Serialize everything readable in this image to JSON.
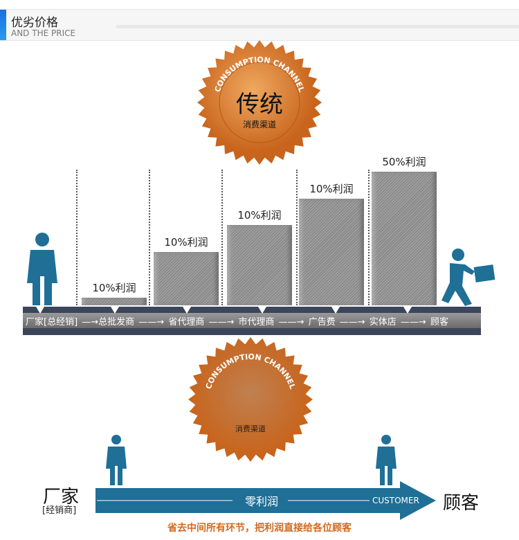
{
  "header": {
    "title": "优劣价格",
    "subtitle": "AND THE PRICE"
  },
  "seal_top": {
    "ring": "CONSUMPTION CHANNEL",
    "main": "传统",
    "sub": "消费渠道"
  },
  "profits": [
    "10%利润",
    "10%利润",
    "10%利润",
    "10%利润",
    "50%利润"
  ],
  "profit_levels_percent": [
    10,
    20,
    30,
    40,
    50
  ],
  "chain": "厂家[总经销] —→总批发商 ——→ 省代理商 ——→ 市代理商 ——→ 广告费 ——→ 实体店 ——→ 顾客",
  "seal_bottom": {
    "ring": "CONSUMPTION CHANNEL",
    "sub": "消费渠道"
  },
  "direct": {
    "from": "厂家",
    "from_sub": "[经销商]",
    "middle": "零利润",
    "arrow_label": "CUSTOMER",
    "to": "顾客",
    "note": "省去中间所有环节，把利润直接给各位顾客"
  },
  "colors": {
    "accent": "#1a6fe0",
    "seal": "#d9772a",
    "arrow": "#1f6f96",
    "note": "#d2691e",
    "strip": "#3b465b"
  }
}
